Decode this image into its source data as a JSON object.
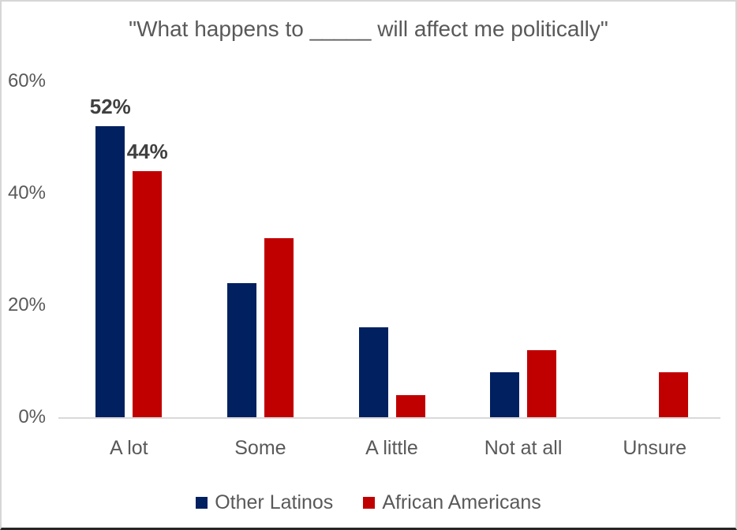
{
  "chart_data": {
    "type": "bar",
    "title": "\"What happens to _____ will affect me politically\"",
    "categories": [
      "A lot",
      "Some",
      "A little",
      "Not at all",
      "Unsure"
    ],
    "series": [
      {
        "name": "Other Latinos",
        "color": "#002060",
        "values": [
          52,
          24,
          16,
          8,
          0
        ]
      },
      {
        "name": "African Americans",
        "color": "#C00000",
        "values": [
          44,
          32,
          4,
          12,
          8
        ]
      }
    ],
    "unit": "%",
    "data_labels": [
      {
        "series": 0,
        "category": 0,
        "text": "52%"
      },
      {
        "series": 1,
        "category": 0,
        "text": "44%"
      }
    ],
    "y_axis": {
      "ticks": [
        "0%",
        "20%",
        "40%",
        "60%"
      ],
      "tick_values": [
        0,
        20,
        40,
        60
      ],
      "min": 0,
      "max": 60
    },
    "grid": false,
    "legend_position": "bottom",
    "colors": {
      "axis_line": "#d9d9d9",
      "axis_text": "#595959",
      "data_label_text": "#404040",
      "background": "#ffffff"
    }
  }
}
